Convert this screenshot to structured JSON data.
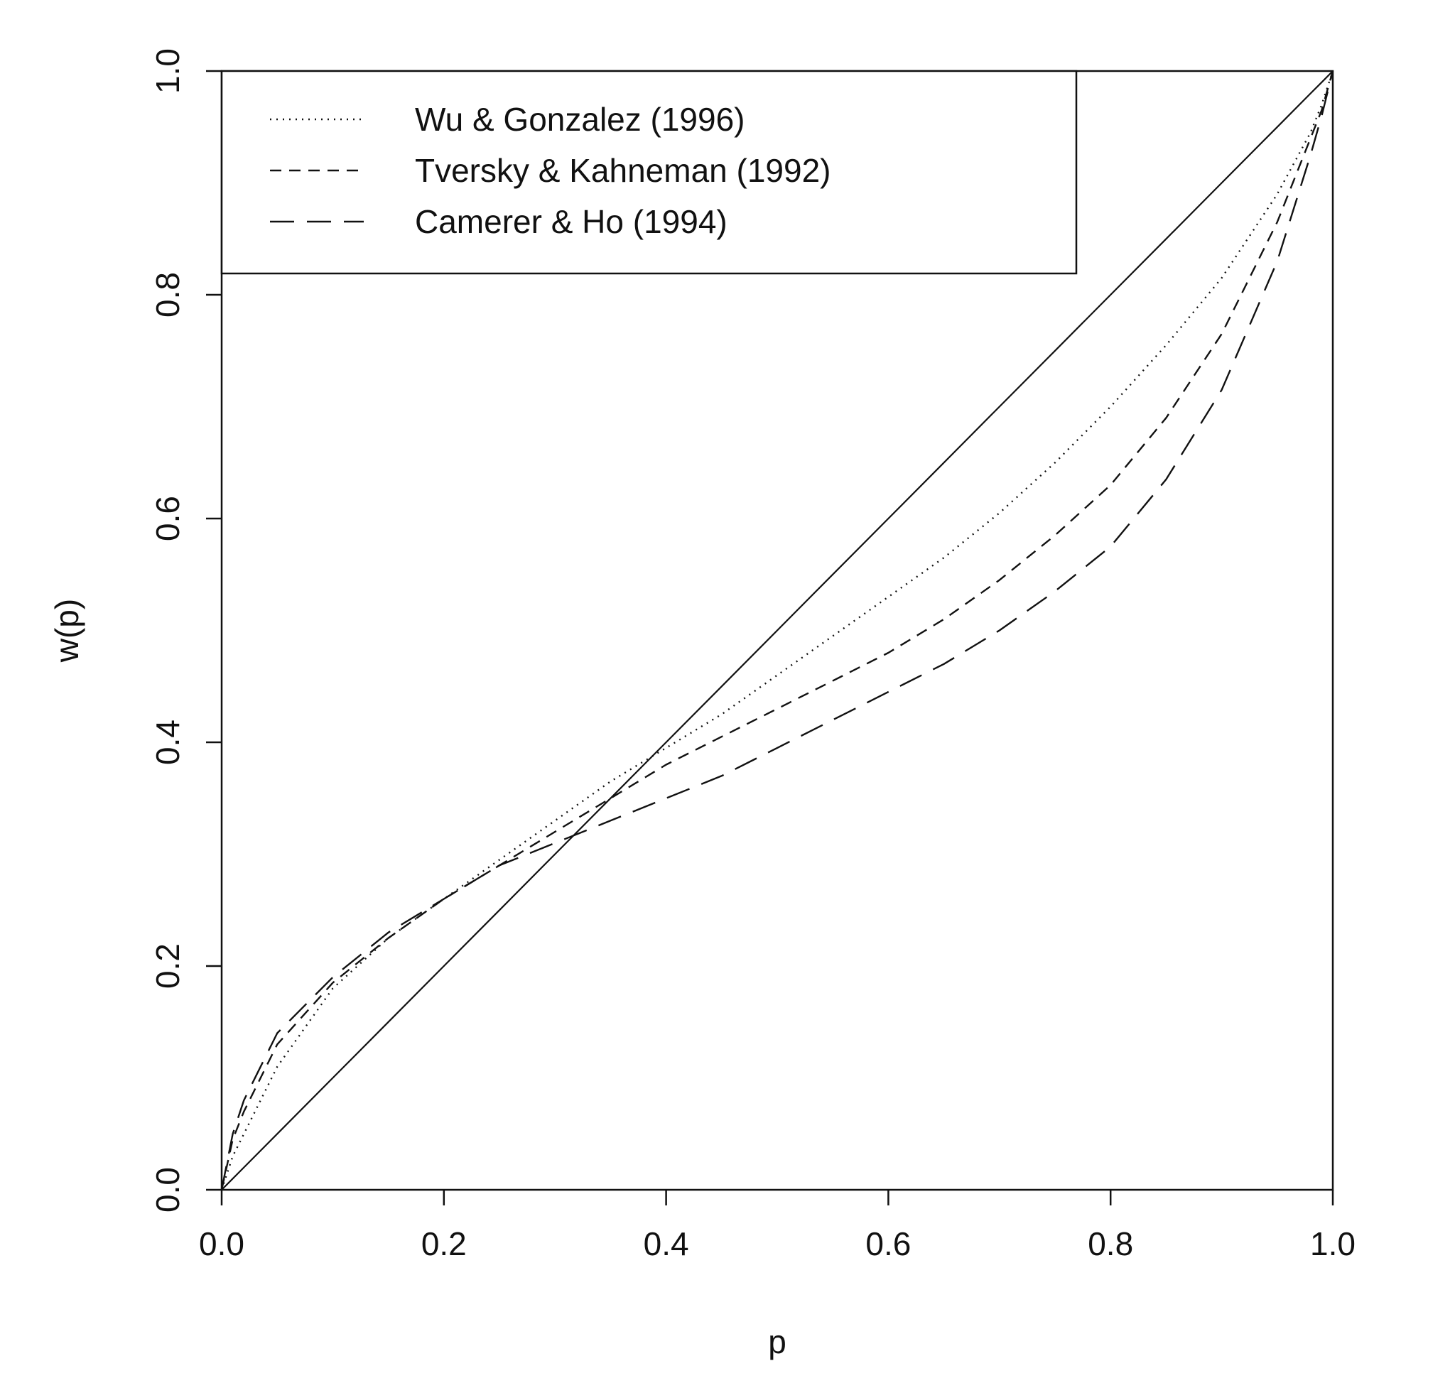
{
  "chart_data": {
    "type": "line",
    "xlabel": "p",
    "ylabel": "w(p)",
    "xlim": [
      0,
      1
    ],
    "ylim": [
      0,
      1
    ],
    "xticks": [
      "0.0",
      "0.2",
      "0.4",
      "0.6",
      "0.8",
      "1.0"
    ],
    "yticks": [
      "0.0",
      "0.2",
      "0.4",
      "0.6",
      "0.8",
      "1.0"
    ],
    "grid": false,
    "legend_position": "top-left",
    "legend": [
      {
        "label": "Wu & Gonzalez (1996)",
        "style": "dotted"
      },
      {
        "label": "Tversky & Kahneman (1992)",
        "style": "short-dashed"
      },
      {
        "label": "Camerer & Ho (1994)",
        "style": "long-dashed"
      }
    ],
    "x": [
      0,
      0.01,
      0.02,
      0.05,
      0.1,
      0.15,
      0.2,
      0.25,
      0.3,
      0.35,
      0.4,
      0.45,
      0.5,
      0.55,
      0.6,
      0.65,
      0.7,
      0.75,
      0.8,
      0.85,
      0.9,
      0.95,
      0.98,
      0.99,
      1
    ],
    "series": [
      {
        "name": "Wu & Gonzalez (1996)",
        "style": "dotted",
        "values": [
          0,
          0.03,
          0.05,
          0.11,
          0.18,
          0.225,
          0.26,
          0.295,
          0.33,
          0.365,
          0.395,
          0.425,
          0.46,
          0.495,
          0.53,
          0.565,
          0.605,
          0.65,
          0.7,
          0.755,
          0.815,
          0.89,
          0.945,
          0.97,
          1
        ]
      },
      {
        "name": "Tversky & Kahneman (1992)",
        "style": "short-dashed",
        "values": [
          0,
          0.045,
          0.07,
          0.13,
          0.185,
          0.225,
          0.26,
          0.29,
          0.32,
          0.35,
          0.38,
          0.405,
          0.43,
          0.455,
          0.48,
          0.51,
          0.545,
          0.585,
          0.63,
          0.69,
          0.765,
          0.865,
          0.94,
          0.965,
          1
        ]
      },
      {
        "name": "Camerer & Ho (1994)",
        "style": "long-dashed",
        "values": [
          0,
          0.05,
          0.08,
          0.14,
          0.19,
          0.23,
          0.26,
          0.29,
          0.31,
          0.33,
          0.35,
          0.37,
          0.395,
          0.42,
          0.445,
          0.47,
          0.5,
          0.535,
          0.575,
          0.635,
          0.715,
          0.83,
          0.925,
          0.96,
          1
        ]
      },
      {
        "name": "",
        "style": "solid",
        "values": [
          0,
          0.01,
          0.02,
          0.05,
          0.1,
          0.15,
          0.2,
          0.25,
          0.3,
          0.35,
          0.4,
          0.45,
          0.5,
          0.55,
          0.6,
          0.65,
          0.7,
          0.75,
          0.8,
          0.85,
          0.9,
          0.95,
          0.98,
          0.99,
          1
        ]
      }
    ]
  }
}
